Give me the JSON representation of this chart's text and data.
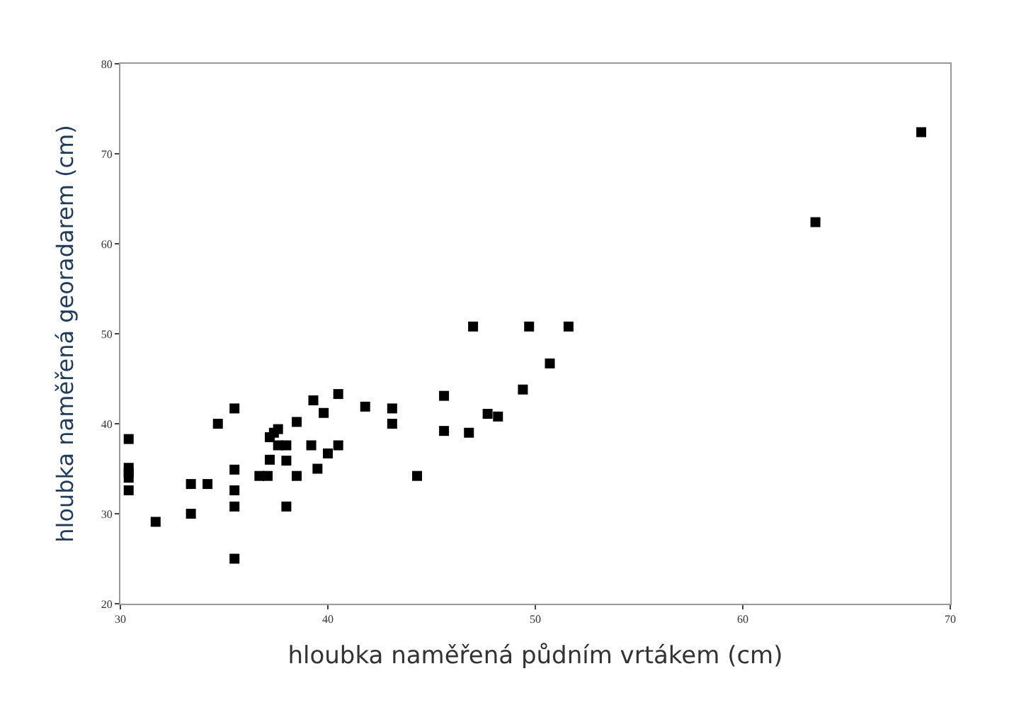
{
  "chart_data": {
    "type": "scatter",
    "xlabel": "hloubka naměřená půdním vrtákem (cm)",
    "ylabel": "hloubka naměřená georadarem (cm)",
    "x": [
      30.4,
      30.4,
      30.4,
      30.4,
      30.4,
      31.7,
      33.4,
      33.4,
      34.2,
      34.7,
      35.5,
      35.5,
      35.5,
      35.5,
      35.5,
      36.7,
      37.1,
      37.2,
      37.2,
      37.4,
      37.6,
      37.6,
      38.0,
      38.0,
      38.0,
      38.5,
      38.5,
      39.2,
      39.3,
      39.5,
      39.8,
      40.0,
      40.5,
      40.5,
      41.8,
      43.1,
      43.1,
      44.3,
      45.6,
      45.6,
      46.8,
      47.0,
      47.7,
      48.2,
      49.4,
      49.7,
      50.7,
      51.6,
      63.5,
      68.6
    ],
    "series": [
      {
        "color": "#000000",
        "values": [
          38.3,
          35.1,
          34.6,
          34.0,
          32.6,
          29.1,
          33.3,
          30.0,
          33.3,
          40.0,
          41.7,
          34.9,
          32.6,
          30.8,
          25.0,
          34.2,
          34.2,
          36.0,
          38.5,
          39.0,
          39.4,
          37.6,
          37.6,
          35.9,
          30.8,
          40.2,
          34.2,
          37.6,
          42.6,
          35.0,
          41.2,
          36.7,
          43.3,
          37.6,
          41.9,
          41.7,
          40.0,
          34.2,
          43.1,
          39.2,
          39.0,
          50.8,
          41.1,
          40.8,
          43.8,
          50.8,
          46.7,
          50.8,
          62.4,
          72.4
        ]
      }
    ],
    "xlim": [
      30,
      70
    ],
    "xticks": [
      30,
      40,
      50,
      60,
      70
    ],
    "ylim": [
      20,
      80
    ],
    "yticks": [
      20,
      30,
      40,
      50,
      60,
      70,
      80
    ],
    "marker": "square"
  }
}
